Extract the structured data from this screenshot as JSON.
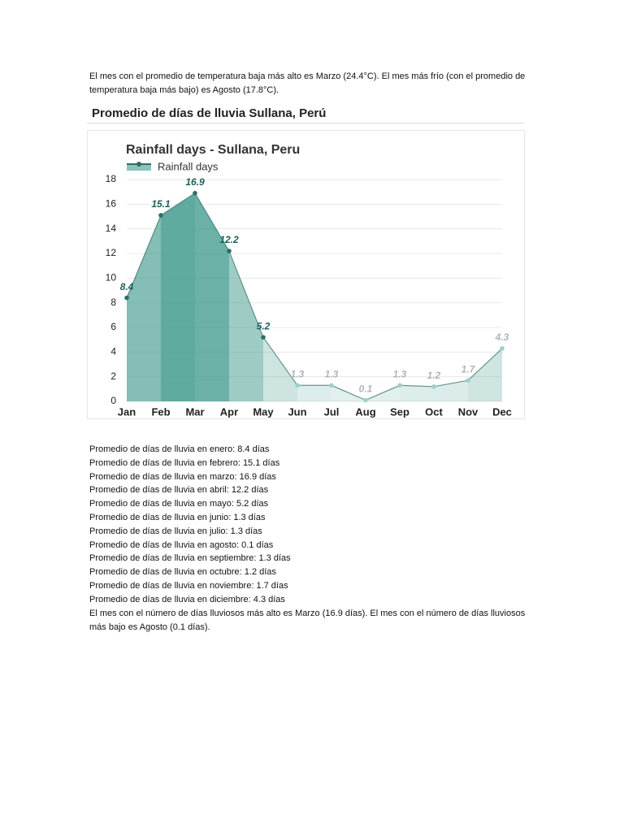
{
  "intro": "El mes con el promedio de temperatura baja más alto es Marzo (24.4°C). El mes más frío (con el promedio de temperatura baja más bajo) es Agosto (17.8°C).",
  "heading": "Promedio de días de lluvia Sullana, Perú",
  "chart_data": {
    "type": "area",
    "title": "Rainfall days - Sullana, Peru",
    "categories": [
      "Jan",
      "Feb",
      "Mar",
      "Apr",
      "May",
      "Jun",
      "Jul",
      "Aug",
      "Sep",
      "Oct",
      "Nov",
      "Dec"
    ],
    "series": [
      {
        "name": "Rainfall days",
        "color": "#3f9a8c",
        "values": [
          8.4,
          15.1,
          16.9,
          12.2,
          5.2,
          1.3,
          1.3,
          0.1,
          1.3,
          1.2,
          1.7,
          4.3
        ]
      }
    ],
    "ylim": [
      0,
      18
    ],
    "yticks": [
      0,
      2,
      4,
      6,
      8,
      10,
      12,
      14,
      16,
      18
    ],
    "grid": true,
    "legend": "top-left"
  },
  "list": [
    "Promedio de días de lluvia en enero: 8.4 días",
    "Promedio de días de lluvia en febrero: 15.1 días",
    "Promedio de días de lluvia en marzo: 16.9 días",
    "Promedio de días de lluvia en abril: 12.2 días",
    "Promedio de días de lluvia en mayo: 5.2 días",
    "Promedio de días de lluvia en junio: 1.3 días",
    "Promedio de días de lluvia en julio: 1.3 días",
    "Promedio de días de lluvia en agosto: 0.1 días",
    "Promedio de días de lluvia en septiembre: 1.3 días",
    "Promedio de días de lluvia en octubre: 1.2 días",
    "Promedio de días de lluvia en noviembre: 1.7 días",
    "Promedio de días de lluvia en diciembre: 4.3 días"
  ],
  "closing": "El mes con el número de días lluviosos más alto es Marzo (16.9 días). El mes con el número de días lluviosos más bajo es Agosto (0.1 días)."
}
